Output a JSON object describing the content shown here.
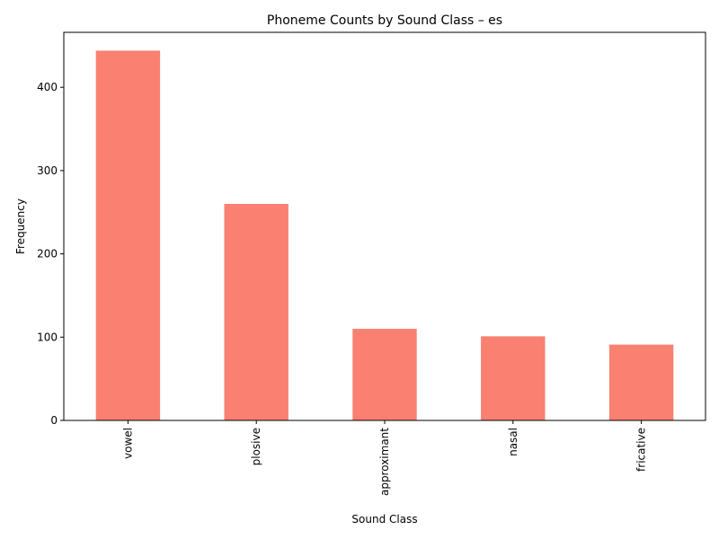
{
  "chart_data": {
    "type": "bar",
    "title": "Phoneme Counts by Sound Class – es",
    "xlabel": "Sound Class",
    "ylabel": "Frequency",
    "categories": [
      "vowel",
      "plosive",
      "approximant",
      "nasal",
      "fricative"
    ],
    "values": [
      444,
      260,
      110,
      101,
      91
    ],
    "ylim": [
      0,
      466
    ],
    "yticks": [
      0,
      100,
      200,
      300,
      400
    ],
    "bar_color": "#fa8072",
    "grid": false,
    "legend": "none"
  }
}
